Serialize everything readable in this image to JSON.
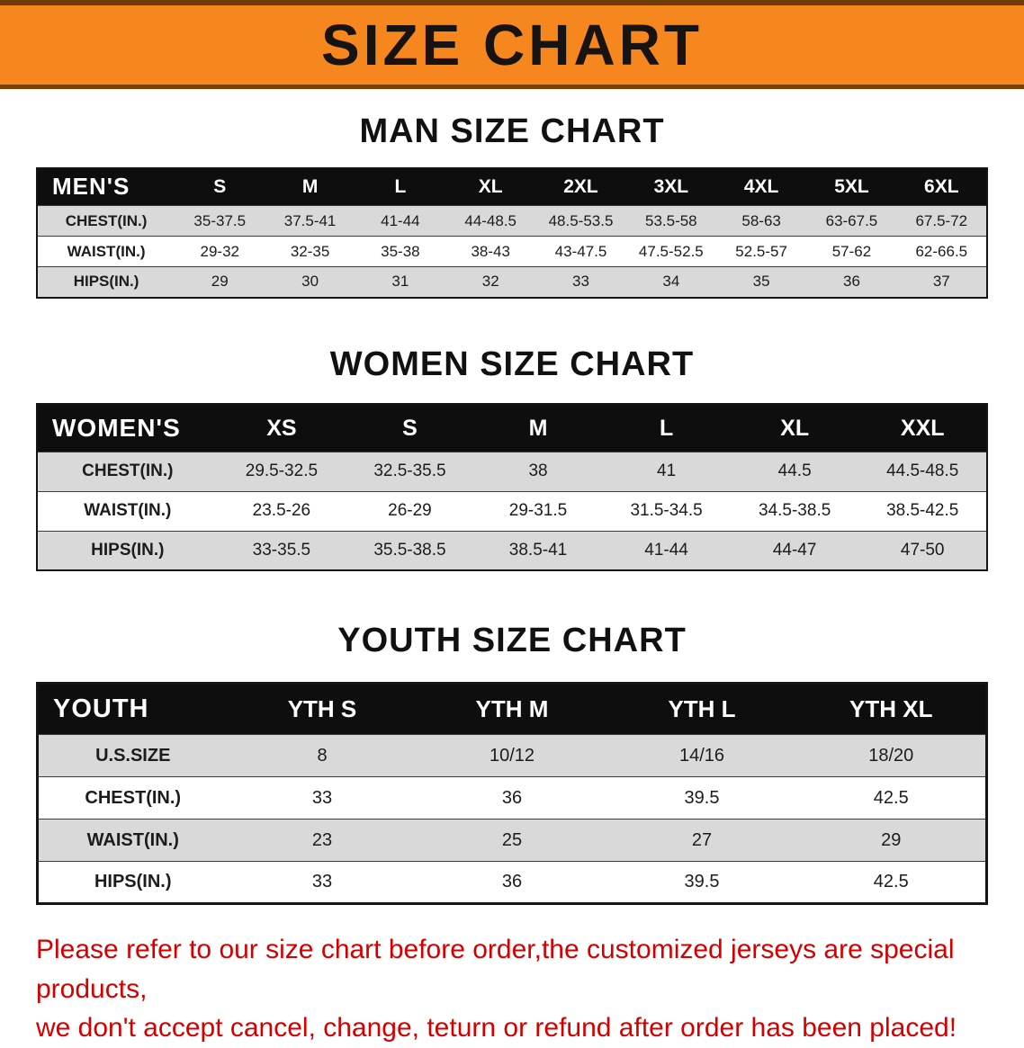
{
  "banner": {
    "title": "SIZE CHART"
  },
  "sections": [
    {
      "id": "men",
      "title": "MAN SIZE CHART",
      "header": [
        "MEN'S",
        "S",
        "M",
        "L",
        "XL",
        "2XL",
        "3XL",
        "4XL",
        "5XL",
        "6XL"
      ],
      "rows": [
        [
          "CHEST(IN.)",
          "35-37.5",
          "37.5-41",
          "41-44",
          "44-48.5",
          "48.5-53.5",
          "53.5-58",
          "58-63",
          "63-67.5",
          "67.5-72"
        ],
        [
          "WAIST(IN.)",
          "29-32",
          "32-35",
          "35-38",
          "38-43",
          "43-47.5",
          "47.5-52.5",
          "52.5-57",
          "57-62",
          "62-66.5"
        ],
        [
          "HIPS(IN.)",
          "29",
          "30",
          "31",
          "32",
          "33",
          "34",
          "35",
          "36",
          "37"
        ]
      ]
    },
    {
      "id": "women",
      "title": "WOMEN SIZE CHART",
      "header": [
        "WOMEN'S",
        "XS",
        "S",
        "M",
        "L",
        "XL",
        "XXL"
      ],
      "rows": [
        [
          "CHEST(IN.)",
          "29.5-32.5",
          "32.5-35.5",
          "38",
          "41",
          "44.5",
          "44.5-48.5"
        ],
        [
          "WAIST(IN.)",
          "23.5-26",
          "26-29",
          "29-31.5",
          "31.5-34.5",
          "34.5-38.5",
          "38.5-42.5"
        ],
        [
          "HIPS(IN.)",
          "33-35.5",
          "35.5-38.5",
          "38.5-41",
          "41-44",
          "44-47",
          "47-50"
        ]
      ]
    },
    {
      "id": "youth",
      "title": "YOUTH SIZE CHART",
      "header": [
        "YOUTH",
        "YTH S",
        "YTH M",
        "YTH L",
        "YTH XL"
      ],
      "rows": [
        [
          "U.S.SIZE",
          "8",
          "10/12",
          "14/16",
          "18/20"
        ],
        [
          "CHEST(IN.)",
          "33",
          "36",
          "39.5",
          "42.5"
        ],
        [
          "WAIST(IN.)",
          "23",
          "25",
          "27",
          "29"
        ],
        [
          "HIPS(IN.)",
          "33",
          "36",
          "39.5",
          "42.5"
        ]
      ]
    }
  ],
  "footer": {
    "line1": "Please refer to our size chart before order,the customized jerseys are special products,",
    "line2": "we don't accept cancel, change, teturn or refund after order has been placed!"
  },
  "colors": {
    "banner_bg": "#f6871f",
    "banner_edge": "#6e3a05",
    "table_header_bg": "#0e0e0e",
    "alt_row_bg": "#d9d9d9",
    "note_text": "#d40000"
  }
}
